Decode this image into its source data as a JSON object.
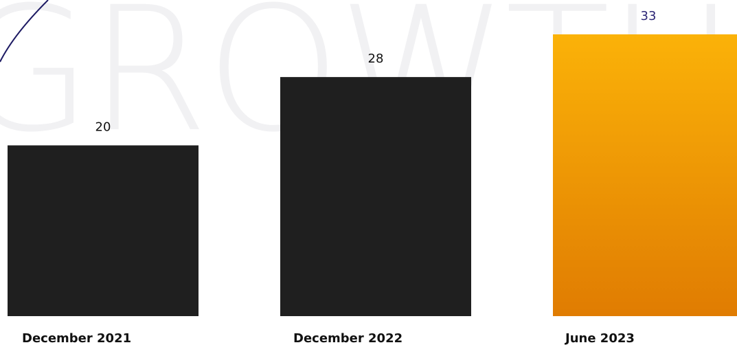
{
  "watermark": "GROWTH",
  "colors": {
    "dark_bar": "#1f1f1f",
    "accent_top": "#fbb208",
    "accent_bottom": "#e07c02",
    "highlight_label": "#2b2575",
    "label": "#111111",
    "swoosh": "#1d1a63"
  },
  "chart_data": {
    "type": "bar",
    "categories": [
      "December 2021",
      "December 2022",
      "June 2023"
    ],
    "values": [
      20,
      28,
      33
    ],
    "highlight_index": 2,
    "value_labels": [
      "20",
      "28",
      "33"
    ],
    "ylim": [
      0,
      33
    ],
    "grid": false,
    "legend": "none"
  }
}
